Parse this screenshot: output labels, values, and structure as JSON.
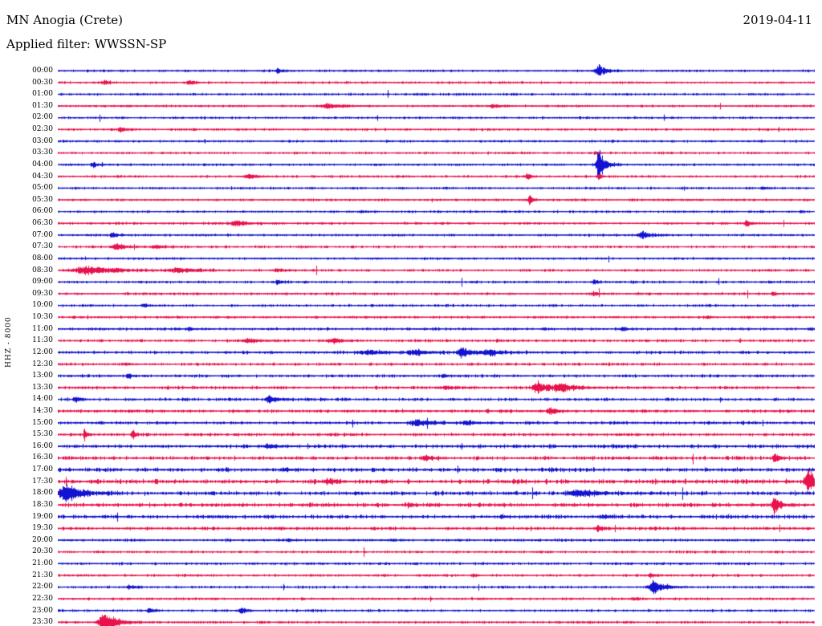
{
  "header": {
    "station_title": "MN Anogia (Crete)",
    "date": "2019-04-11",
    "filter_label": "Applied filter: WWSSN-SP"
  },
  "y_axis": {
    "channel_label": "HHZ - 8000"
  },
  "chart_data": {
    "type": "line",
    "subtype": "helicorder-seismogram",
    "title": "MN Anogia (Crete)",
    "date": "2019-04-11",
    "filter": "WWSSN-SP",
    "channel_scale_label": "HHZ - 8000",
    "row_duration_minutes": 30,
    "legend_position": "none",
    "grid": false,
    "trace_color_pattern": "alternating: hour rows blue, half-hour rows red",
    "colors": {
      "blue": "#1212d0",
      "red": "#e8124d",
      "background": "#ffffff",
      "text": "#000000"
    },
    "event_format": "[position_fraction_along_row, peak_amplitude_px, width_fraction]",
    "rows": [
      {
        "t": "00:00",
        "c": "blue",
        "n": 0.9,
        "e": [
          [
            0.29,
            4,
            0.004
          ],
          [
            0.715,
            9,
            0.007
          ]
        ]
      },
      {
        "t": "00:30",
        "c": "red",
        "n": 0.9,
        "e": [
          [
            0.062,
            3.5,
            0.004
          ],
          [
            0.173,
            3.5,
            0.005
          ]
        ]
      },
      {
        "t": "01:00",
        "c": "blue",
        "n": 0.9,
        "e": []
      },
      {
        "t": "01:30",
        "c": "red",
        "n": 0.9,
        "e": [
          [
            0.358,
            3,
            0.018
          ],
          [
            0.576,
            2.5,
            0.008
          ]
        ]
      },
      {
        "t": "02:00",
        "c": "blue",
        "n": 0.9,
        "e": []
      },
      {
        "t": "02:30",
        "c": "red",
        "n": 0.9,
        "e": [
          [
            0.083,
            4,
            0.005
          ]
        ]
      },
      {
        "t": "03:00",
        "c": "blue",
        "n": 0.9,
        "e": []
      },
      {
        "t": "03:30",
        "c": "red",
        "n": 0.9,
        "e": [
          [
            0.71,
            2,
            0.004
          ]
        ]
      },
      {
        "t": "04:00",
        "c": "blue",
        "n": 0.9,
        "e": [
          [
            0.046,
            4,
            0.004
          ],
          [
            0.715,
            22,
            0.006
          ]
        ]
      },
      {
        "t": "04:30",
        "c": "red",
        "n": 0.9,
        "e": [
          [
            0.252,
            3,
            0.01
          ],
          [
            0.62,
            5,
            0.004
          ],
          [
            0.715,
            3,
            0.004
          ]
        ]
      },
      {
        "t": "05:00",
        "c": "blue",
        "n": 0.9,
        "e": [
          [
            0.93,
            2.5,
            0.004
          ]
        ]
      },
      {
        "t": "05:30",
        "c": "red",
        "n": 0.9,
        "e": [
          [
            0.623,
            12,
            0.0025
          ]
        ]
      },
      {
        "t": "06:00",
        "c": "blue",
        "n": 0.9,
        "e": [
          [
            0.4,
            2,
            0.004
          ]
        ]
      },
      {
        "t": "06:30",
        "c": "red",
        "n": 0.95,
        "e": [
          [
            0.236,
            4,
            0.012
          ],
          [
            0.91,
            5,
            0.004
          ]
        ]
      },
      {
        "t": "07:00",
        "c": "blue",
        "n": 0.95,
        "e": [
          [
            0.072,
            5,
            0.004
          ],
          [
            0.772,
            5,
            0.009
          ]
        ]
      },
      {
        "t": "07:30",
        "c": "red",
        "n": 0.95,
        "e": [
          [
            0.077,
            4,
            0.01
          ],
          [
            0.13,
            3,
            0.008
          ]
        ]
      },
      {
        "t": "08:00",
        "c": "blue",
        "n": 0.9,
        "e": []
      },
      {
        "t": "08:30",
        "c": "red",
        "n": 1,
        "e": [
          [
            0.04,
            6,
            0.03
          ],
          [
            0.16,
            3,
            0.02
          ],
          [
            0.29,
            2,
            0.01
          ]
        ]
      },
      {
        "t": "09:00",
        "c": "blue",
        "n": 1,
        "e": [
          [
            0.29,
            3.5,
            0.004
          ],
          [
            0.708,
            2.5,
            0.004
          ]
        ]
      },
      {
        "t": "09:30",
        "c": "red",
        "n": 1,
        "e": [
          [
            0.708,
            2.2,
            0.004
          ],
          [
            0.945,
            2.5,
            0.004
          ]
        ]
      },
      {
        "t": "10:00",
        "c": "blue",
        "n": 1,
        "e": [
          [
            0.115,
            3,
            0.004
          ]
        ]
      },
      {
        "t": "10:30",
        "c": "red",
        "n": 1,
        "e": [
          [
            0.857,
            2.5,
            0.004
          ]
        ]
      },
      {
        "t": "11:00",
        "c": "blue",
        "n": 1.05,
        "e": [
          [
            0.173,
            3,
            0.004
          ],
          [
            0.745,
            3,
            0.004
          ]
        ]
      },
      {
        "t": "11:30",
        "c": "red",
        "n": 1.05,
        "e": [
          [
            0.252,
            3,
            0.012
          ],
          [
            0.364,
            3.5,
            0.009
          ]
        ]
      },
      {
        "t": "12:00",
        "c": "blue",
        "n": 1.2,
        "e": [
          [
            0.41,
            3,
            0.02
          ],
          [
            0.475,
            3,
            0.012
          ],
          [
            0.533,
            8,
            0.008
          ],
          [
            0.57,
            4,
            0.015
          ]
        ]
      },
      {
        "t": "12:30",
        "c": "red",
        "n": 1.15,
        "e": [
          [
            0.09,
            2,
            0.004
          ]
        ]
      },
      {
        "t": "13:00",
        "c": "blue",
        "n": 1.15,
        "e": [
          [
            0.093,
            3,
            0.004
          ],
          [
            0.51,
            2,
            0.006
          ]
        ]
      },
      {
        "t": "13:30",
        "c": "red",
        "n": 1.25,
        "e": [
          [
            0.512,
            2.5,
            0.008
          ],
          [
            0.634,
            9,
            0.01
          ],
          [
            0.665,
            6,
            0.015
          ]
        ]
      },
      {
        "t": "14:00",
        "c": "blue",
        "n": 1.25,
        "e": [
          [
            0.025,
            3,
            0.004
          ],
          [
            0.279,
            6,
            0.007
          ]
        ]
      },
      {
        "t": "14:30",
        "c": "red",
        "n": 1.25,
        "e": [
          [
            0.65,
            5,
            0.006
          ]
        ]
      },
      {
        "t": "15:00",
        "c": "blue",
        "n": 1.25,
        "e": [
          [
            0.475,
            5,
            0.012
          ],
          [
            0.54,
            3,
            0.01
          ]
        ]
      },
      {
        "t": "15:30",
        "c": "red",
        "n": 1.25,
        "e": [
          [
            0.035,
            8,
            0.0025
          ],
          [
            0.099,
            9,
            0.0025
          ]
        ]
      },
      {
        "t": "16:00",
        "c": "blue",
        "n": 1.45,
        "e": [
          [
            0.279,
            2.5,
            0.01
          ]
        ]
      },
      {
        "t": "16:30",
        "c": "red",
        "n": 1.5,
        "e": [
          [
            0.486,
            3,
            0.005
          ],
          [
            0.947,
            9,
            0.004
          ]
        ]
      },
      {
        "t": "17:00",
        "c": "blue",
        "n": 1.7,
        "e": [
          [
            0.3,
            2.5,
            0.005
          ]
        ]
      },
      {
        "t": "17:30",
        "c": "red",
        "n": 1.8,
        "e": [
          [
            0.358,
            3,
            0.01
          ],
          [
            0.992,
            16,
            0.008
          ]
        ]
      },
      {
        "t": "18:00",
        "c": "blue",
        "n": 1.7,
        "e": [
          [
            0.012,
            12,
            0.015
          ],
          [
            0.688,
            5,
            0.018
          ]
        ]
      },
      {
        "t": "18:30",
        "c": "red",
        "n": 1.6,
        "e": [
          [
            0.464,
            3.5,
            0.004
          ],
          [
            0.947,
            13,
            0.005
          ]
        ]
      },
      {
        "t": "19:00",
        "c": "blue",
        "n": 1.5,
        "e": [
          [
            0.586,
            2.5,
            0.005
          ],
          [
            0.72,
            3,
            0.006
          ]
        ]
      },
      {
        "t": "19:30",
        "c": "red",
        "n": 1.3,
        "e": [
          [
            0.714,
            4,
            0.005
          ]
        ]
      },
      {
        "t": "20:00",
        "c": "blue",
        "n": 1.05,
        "e": [
          [
            0.305,
            2.2,
            0.004
          ]
        ]
      },
      {
        "t": "20:30",
        "c": "red",
        "n": 1,
        "e": []
      },
      {
        "t": "21:00",
        "c": "blue",
        "n": 1,
        "e": []
      },
      {
        "t": "21:30",
        "c": "red",
        "n": 1,
        "e": [
          [
            0.549,
            2,
            0.004
          ],
          [
            0.783,
            2,
            0.004
          ]
        ]
      },
      {
        "t": "22:00",
        "c": "blue",
        "n": 1,
        "e": [
          [
            0.093,
            2.5,
            0.004
          ],
          [
            0.787,
            9,
            0.01
          ]
        ]
      },
      {
        "t": "22:30",
        "c": "red",
        "n": 1,
        "e": [
          [
            0.761,
            2,
            0.004
          ]
        ]
      },
      {
        "t": "23:00",
        "c": "blue",
        "n": 0.95,
        "e": [
          [
            0.12,
            4,
            0.004
          ],
          [
            0.242,
            5,
            0.005
          ]
        ]
      },
      {
        "t": "23:30",
        "c": "red",
        "n": 0.95,
        "e": [
          [
            0.062,
            14,
            0.012
          ]
        ]
      }
    ]
  }
}
